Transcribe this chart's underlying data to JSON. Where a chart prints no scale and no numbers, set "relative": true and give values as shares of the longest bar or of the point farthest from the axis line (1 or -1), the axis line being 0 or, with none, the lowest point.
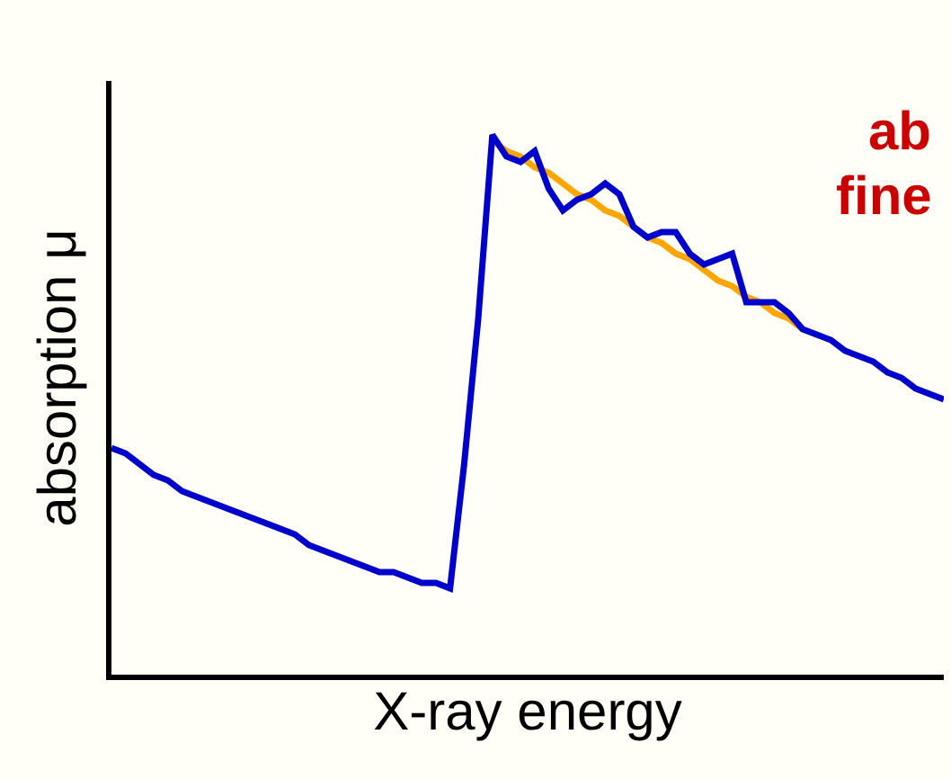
{
  "chart_data": {
    "type": "line",
    "relative": true,
    "xlabel": "X-ray energy",
    "ylabel": "absorption μ",
    "tick_labels": false,
    "grid": false,
    "marker": "none",
    "line_style": "solid",
    "annotations": [
      "ab",
      "fine"
    ],
    "categories": [
      null,
      null,
      null,
      null,
      null,
      null,
      null,
      null,
      null,
      null,
      null,
      null,
      null,
      null,
      null,
      null,
      null,
      null,
      null,
      null,
      null,
      null,
      null,
      null,
      null,
      null,
      null,
      null,
      null,
      null,
      null,
      null,
      null,
      null,
      null,
      null,
      null,
      null,
      null,
      null,
      null,
      null,
      null,
      null,
      null,
      null,
      null,
      null,
      null,
      null,
      null,
      null,
      null,
      null,
      null,
      null,
      null,
      null,
      null,
      null
    ],
    "series": [
      {
        "color": "#ffa500",
        "values": [
          null,
          null,
          null,
          null,
          null,
          null,
          null,
          null,
          null,
          null,
          null,
          null,
          null,
          null,
          null,
          null,
          null,
          null,
          null,
          null,
          null,
          null,
          null,
          null,
          null,
          null,
          null,
          0.99,
          0.97,
          0.96,
          0.94,
          0.93,
          0.91,
          0.89,
          0.88,
          0.86,
          0.85,
          0.83,
          0.81,
          0.8,
          0.78,
          0.77,
          0.75,
          0.73,
          0.72,
          0.7,
          0.69,
          0.67,
          0.66,
          0.64,
          null,
          null,
          null,
          null,
          null,
          null,
          null,
          null,
          null,
          null
        ]
      },
      {
        "color": "#0000cc",
        "values": [
          0.42,
          0.41,
          0.39,
          0.37,
          0.36,
          0.34,
          0.33,
          0.32,
          0.31,
          0.3,
          0.29,
          0.28,
          0.27,
          0.26,
          0.24,
          0.23,
          0.22,
          0.21,
          0.2,
          0.19,
          0.19,
          0.18,
          0.17,
          0.17,
          0.16,
          0.39,
          0.66,
          1,
          0.96,
          0.95,
          0.97,
          0.9,
          0.86,
          0.88,
          0.89,
          0.91,
          0.89,
          0.83,
          0.81,
          0.82,
          0.82,
          0.78,
          0.76,
          0.77,
          0.78,
          0.69,
          0.69,
          0.69,
          0.67,
          0.64,
          0.63,
          0.62,
          0.6,
          0.59,
          0.58,
          0.56,
          0.55,
          0.53,
          0.52,
          0.51
        ]
      }
    ]
  }
}
